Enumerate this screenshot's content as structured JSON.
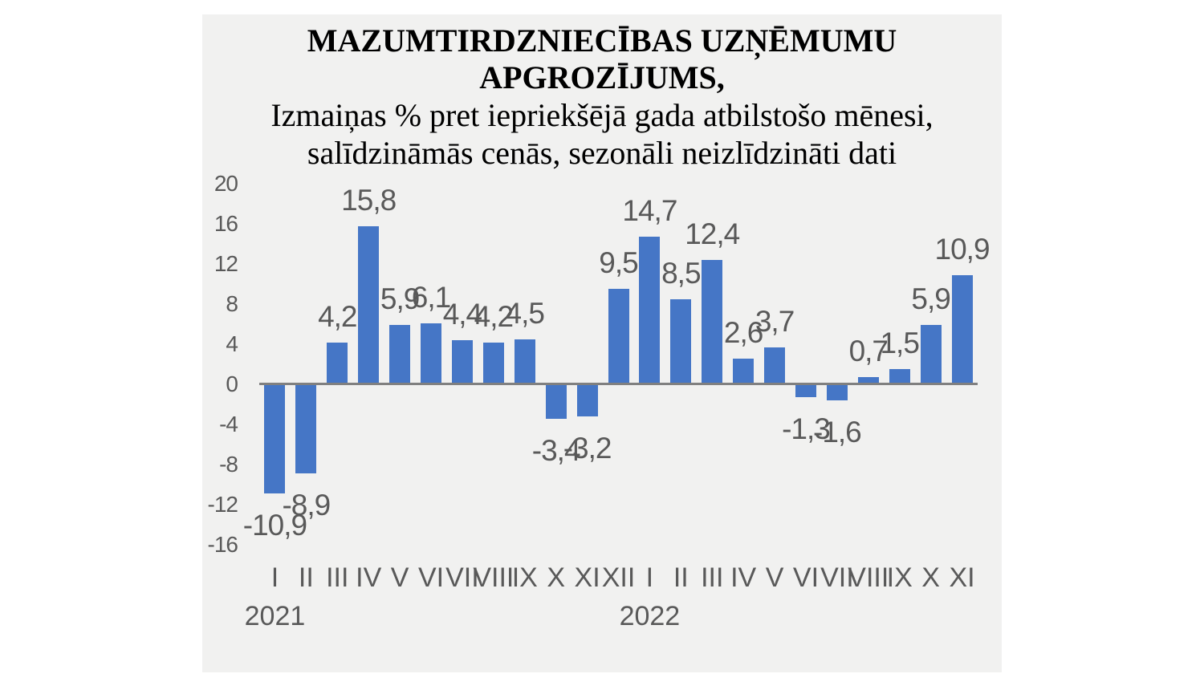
{
  "page": {
    "background": "#ffffff",
    "panel_background": "#f1f1f0"
  },
  "title": {
    "line1": "MAZUMTIRDZNIECĪBAS UZŅĒMUMU",
    "line2": "APGROZĪJUMS,"
  },
  "subtitle": {
    "line1": "Izmaiņas % pret iepriekšējā gada atbilstošo mēnesi,",
    "line2": "salīdzināmās cenās, sezonāli neizlīdzināti dati"
  },
  "chart_data": {
    "type": "bar",
    "title": "MAZUMTIRDZNIECĪBAS UZŅĒMUMU APGROZĪJUMS,",
    "subtitle": "Izmaiņas % pret iepriekšējā gada atbilstošo mēnesi, salīdzināmās cenās, sezonāli neizlīdzināti dati",
    "months": [
      "I",
      "II",
      "III",
      "IV",
      "V",
      "VI",
      "VII",
      "VIII",
      "IX",
      "X",
      "XI",
      "XII",
      "I",
      "II",
      "III",
      "IV",
      "V",
      "VI",
      "VII",
      "VIII",
      "IX",
      "X",
      "XI"
    ],
    "years": [
      {
        "label": "2021",
        "month_index": 0
      },
      {
        "label": "2022",
        "month_index": 12
      }
    ],
    "series": [
      {
        "name": "Izmaiņas %",
        "values": [
          -10.9,
          -8.9,
          4.2,
          15.8,
          5.9,
          6.1,
          4.4,
          4.2,
          4.5,
          -3.4,
          -3.2,
          9.5,
          14.7,
          8.5,
          12.4,
          2.6,
          3.7,
          -1.3,
          -1.6,
          0.7,
          1.5,
          5.9,
          10.9
        ]
      }
    ],
    "y_ticks": [
      20,
      16,
      12,
      8,
      4,
      0,
      -4,
      -8,
      -12,
      -16
    ],
    "ylim": [
      -16,
      20
    ],
    "decimal_separator": ",",
    "grid": false,
    "legend": false,
    "bar_color": "#4576c6",
    "axis_color": "#808080",
    "label_color": "#595959"
  }
}
